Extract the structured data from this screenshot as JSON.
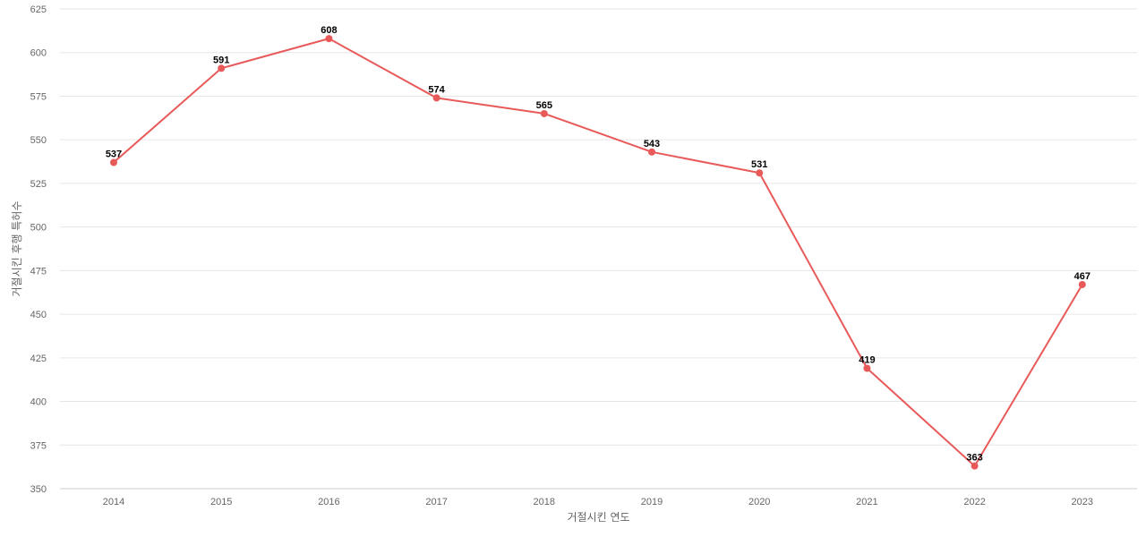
{
  "chart_data": {
    "type": "line",
    "title": "",
    "xlabel": "거절시킨 연도",
    "ylabel": "거절시킨 후행 특허수",
    "categories": [
      "2014",
      "2015",
      "2016",
      "2017",
      "2018",
      "2019",
      "2020",
      "2021",
      "2022",
      "2023"
    ],
    "series": [
      {
        "values": [
          537,
          591,
          608,
          574,
          565,
          543,
          531,
          419,
          363,
          467
        ]
      }
    ],
    "ylim": [
      350,
      625
    ],
    "yticks": [
      350,
      375,
      400,
      425,
      450,
      475,
      500,
      525,
      550,
      575,
      600,
      625
    ],
    "grid": true,
    "data_labels": true,
    "colors": {
      "line": "#e85a5a",
      "marker": "#e85a5a"
    }
  }
}
